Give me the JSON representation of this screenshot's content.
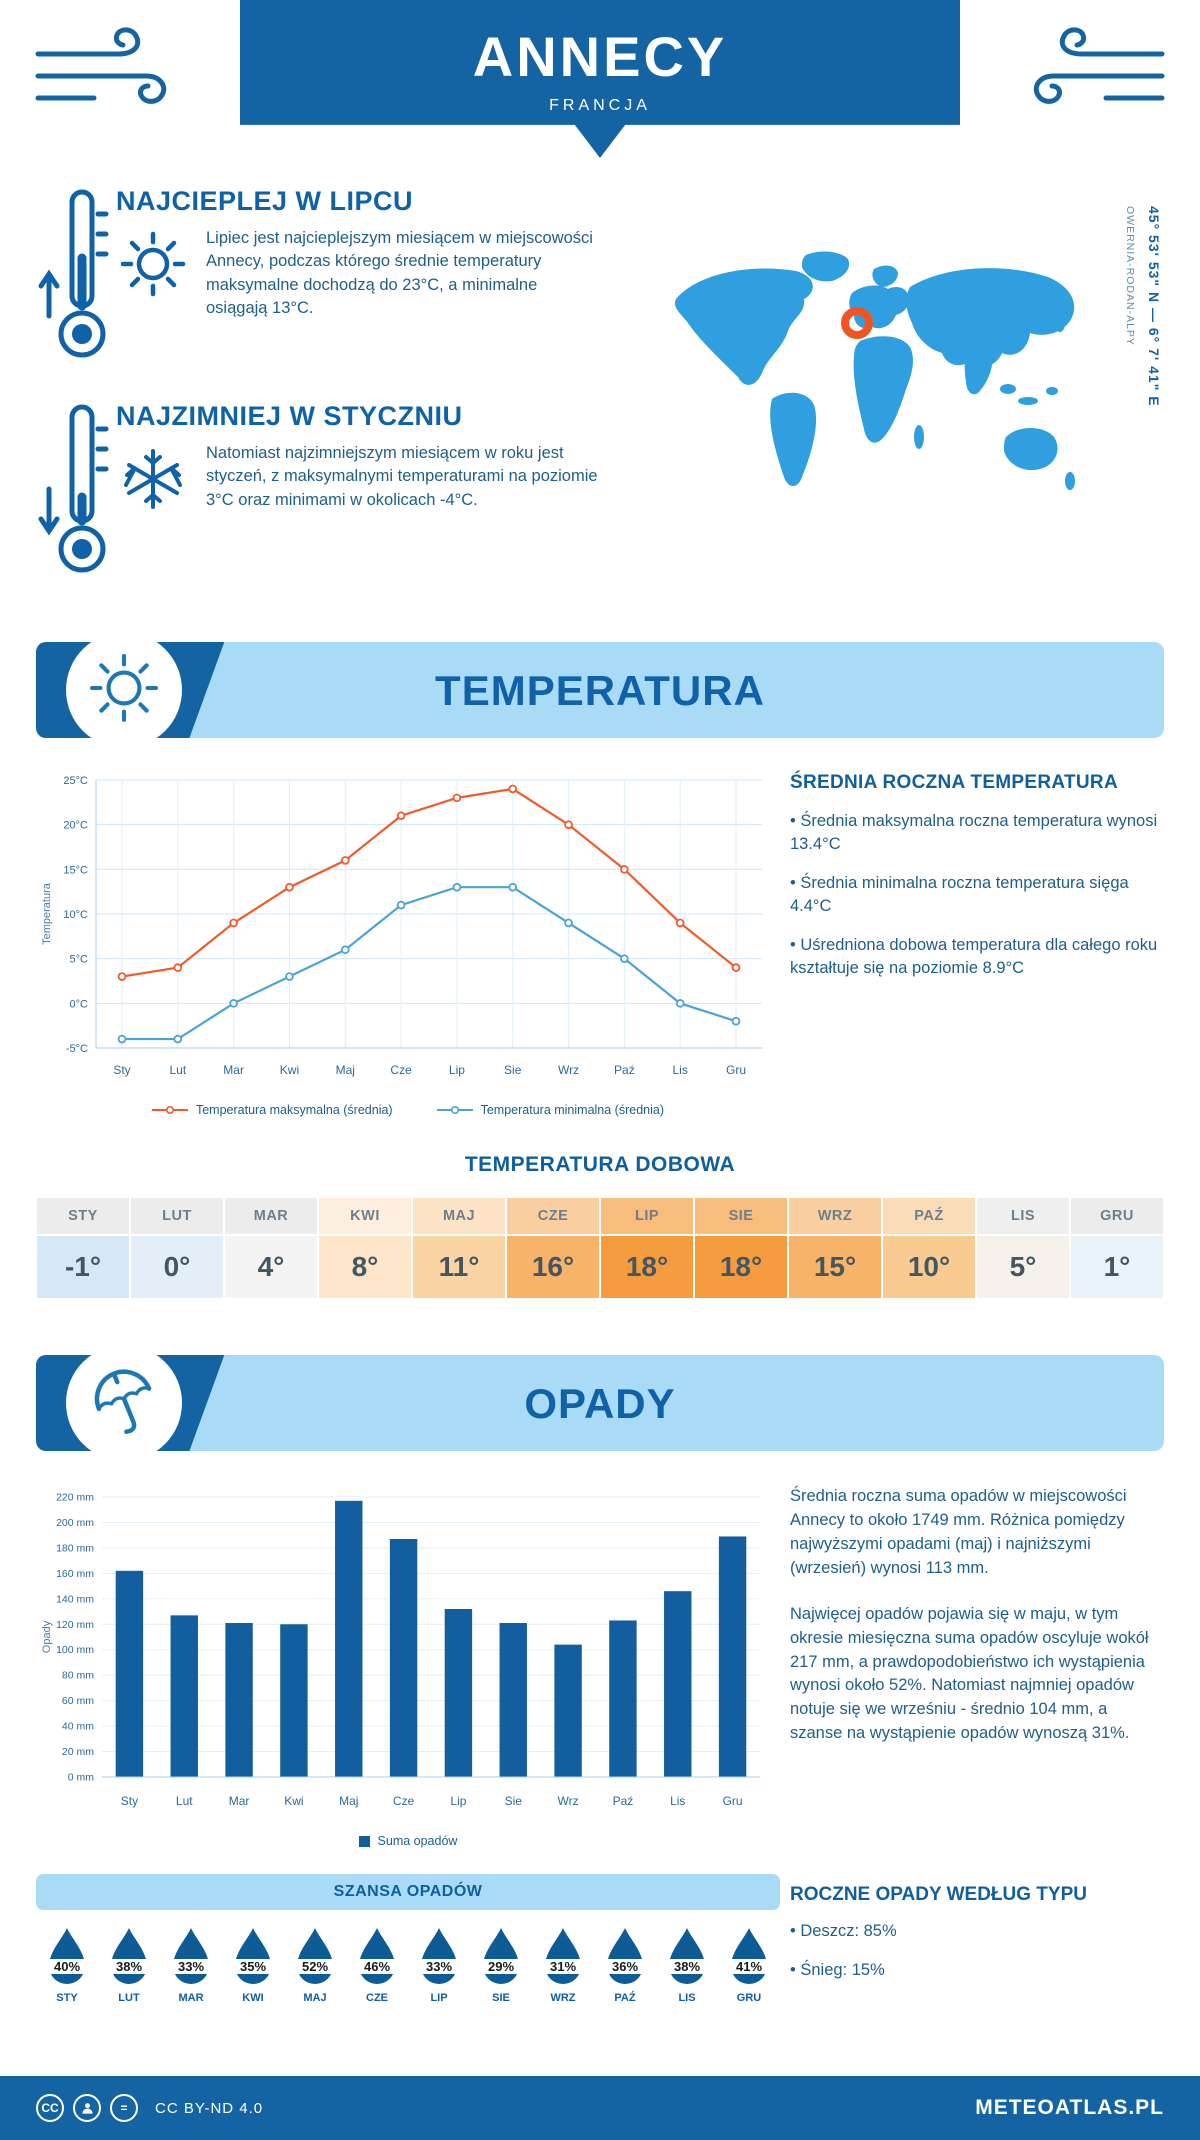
{
  "colors": {
    "primary": "#1464a4",
    "heading": "#0f62a8",
    "banner_light": "#a9dbf6",
    "body_text": "#1d5f87",
    "map_blue": "#2f9fdf",
    "marker_orange": "#f0551f",
    "max_line": "#f15b2a",
    "min_line": "#4aa3d8",
    "bar": "#135e9e",
    "droplet": "#0d5c95"
  },
  "header": {
    "title": "ANNECY",
    "subtitle": "FRANCJA"
  },
  "intro": {
    "warm_title": "NAJCIEPLEJ W LIPCU",
    "warm_text": "Lipiec jest najcieplejszym miesiącem w miejscowości Annecy, podczas którego średnie temperatury maksymalne dochodzą do 23°C, a minimalne osiągają 13°C.",
    "cold_title": "NAJZIMNIEJ W STYCZNIU",
    "cold_text": "Natomiast najzimniejszym miesiącem w roku jest styczeń, z maksymalnymi temperaturami na poziomie 3°C oraz minimami w okolicach -4°C.",
    "coordinates": "45° 53' 53\" N — 6° 7' 41\" E",
    "region": "OWERNIA-RODAN-ALPY"
  },
  "temperature": {
    "banner_title": "TEMPERATURA",
    "summary_title": "ŚREDNIA ROCZNA TEMPERATURA",
    "bullets": [
      "Średnia maksymalna roczna temperatura wynosi 13.4°C",
      "Średnia minimalna roczna temperatura sięga 4.4°C",
      "Uśredniona dobowa temperatura dla całego roku kształtuje się na poziomie 8.9°C"
    ],
    "daily_title": "TEMPERATURA DOBOWA",
    "table": {
      "months": [
        "STY",
        "LUT",
        "MAR",
        "KWI",
        "MAJ",
        "CZE",
        "LIP",
        "SIE",
        "WRZ",
        "PAŹ",
        "LIS",
        "GRU"
      ],
      "values": [
        "-1°",
        "0°",
        "4°",
        "8°",
        "11°",
        "16°",
        "18°",
        "18°",
        "15°",
        "10°",
        "5°",
        "1°"
      ],
      "header_colors": [
        "#ececec",
        "#ececec",
        "#ececec",
        "#fdeedd",
        "#fce3c6",
        "#f9cfa0",
        "#f8bd7c",
        "#f8bd7c",
        "#f9cfa0",
        "#fbdcb8",
        "#efefef",
        "#ececec"
      ],
      "value_colors": [
        "#d6e7f5",
        "#e3eef8",
        "#f4f4f4",
        "#fce5c8",
        "#fad4a2",
        "#f7b469",
        "#f59d3e",
        "#f59d3e",
        "#f7b469",
        "#f9cb90",
        "#f5f0ea",
        "#e9f1f9"
      ]
    }
  },
  "precipitation": {
    "banner_title": "OPADY",
    "paragraphs": [
      "Średnia roczna suma opadów w miejscowości Annecy to około 1749 mm. Różnica pomiędzy najwyższymi opadami (maj) i najniższymi (wrzesień) wynosi 113 mm.",
      "Najwięcej opadów pojawia się w maju, w tym okresie miesięczna suma opadów oscyluje wokół 217 mm, a prawdopodobieństwo ich wystąpienia wynosi około 52%. Natomiast najmniej opadów notuje się we wrześniu - średnio 104 mm, a szanse na wystąpienie opadów wynoszą 31%."
    ],
    "chance_title": "SZANSA OPADÓW",
    "chance_months": [
      "STY",
      "LUT",
      "MAR",
      "KWI",
      "MAJ",
      "CZE",
      "LIP",
      "SIE",
      "WRZ",
      "PAŹ",
      "LIS",
      "GRU"
    ],
    "chance_values": [
      "40%",
      "38%",
      "33%",
      "35%",
      "52%",
      "46%",
      "33%",
      "29%",
      "31%",
      "36%",
      "38%",
      "41%"
    ],
    "type_title": "ROCZNE OPADY WEDŁUG TYPU",
    "type_bullets": [
      "Deszcz: 85%",
      "Śnieg: 15%"
    ]
  },
  "footer": {
    "license": "CC BY-ND 4.0",
    "brand": "METEOATLAS.PL"
  },
  "chart_data": [
    {
      "type": "line",
      "title": "",
      "categories": [
        "Sty",
        "Lut",
        "Mar",
        "Kwi",
        "Maj",
        "Cze",
        "Lip",
        "Sie",
        "Wrz",
        "Paź",
        "Lis",
        "Gru"
      ],
      "series": [
        {
          "name": "Temperatura maksymalna (średnia)",
          "color": "#f15b2a",
          "values": [
            3,
            4,
            9,
            13,
            16,
            21,
            23,
            24,
            20,
            15,
            9,
            4
          ]
        },
        {
          "name": "Temperatura minimalna (średnia)",
          "color": "#4aa3d8",
          "values": [
            -4,
            -4,
            0,
            3,
            6,
            11,
            13,
            13,
            9,
            5,
            0,
            -2
          ]
        }
      ],
      "xlabel": "",
      "ylabel": "Temperatura",
      "ylim": [
        -5,
        25
      ],
      "ytick_step": 5,
      "ytick_suffix": "°C",
      "grid": true,
      "legend_position": "bottom"
    },
    {
      "type": "bar",
      "title": "",
      "categories": [
        "Sty",
        "Lut",
        "Mar",
        "Kwi",
        "Maj",
        "Cze",
        "Lip",
        "Sie",
        "Wrz",
        "Paź",
        "Lis",
        "Gru"
      ],
      "values": [
        162,
        127,
        121,
        120,
        217,
        187,
        132,
        121,
        104,
        123,
        146,
        189
      ],
      "color": "#135e9e",
      "legend": "Suma opadów",
      "xlabel": "",
      "ylabel": "Opady",
      "ylim": [
        0,
        220
      ],
      "ytick_step": 20,
      "ytick_suffix": " mm",
      "grid": true,
      "legend_position": "bottom"
    }
  ]
}
